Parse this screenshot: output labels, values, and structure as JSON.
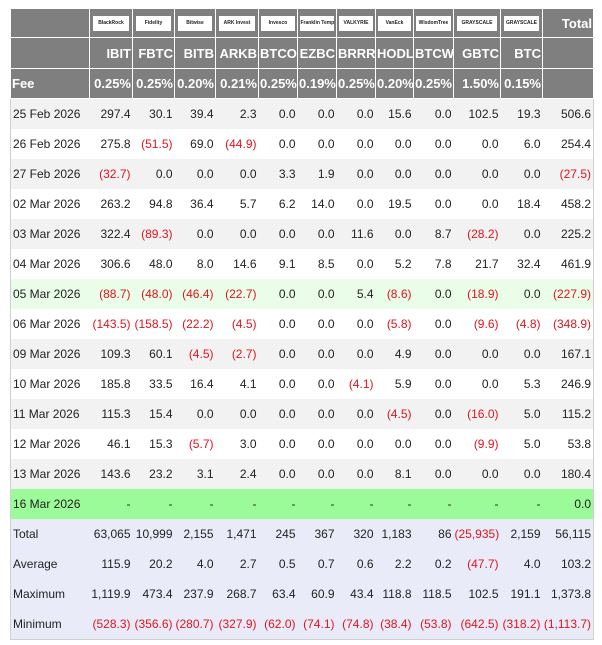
{
  "columns": [
    {
      "issuer": "BlackRock",
      "ticker": "IBIT",
      "fee": "0.25%"
    },
    {
      "issuer": "Fidelity",
      "ticker": "FBTC",
      "fee": "0.25%"
    },
    {
      "issuer": "Bitwise",
      "ticker": "BITB",
      "fee": "0.20%"
    },
    {
      "issuer": "ARK Invest",
      "ticker": "ARKB",
      "fee": "0.21%"
    },
    {
      "issuer": "Invesco",
      "ticker": "BTCO",
      "fee": "0.25%"
    },
    {
      "issuer": "Franklin Templeton",
      "ticker": "EZBC",
      "fee": "0.19%"
    },
    {
      "issuer": "VALKYRIE",
      "ticker": "BRRR",
      "fee": "0.25%"
    },
    {
      "issuer": "VanEck",
      "ticker": "HODL",
      "fee": "0.20%"
    },
    {
      "issuer": "WisdomTree",
      "ticker": "BTCW",
      "fee": "0.25%"
    },
    {
      "issuer": "GRAYSCALE",
      "ticker": "GBTC",
      "fee": "1.50%"
    },
    {
      "issuer": "GRAYSCALE",
      "ticker": "BTC",
      "fee": "0.15%"
    }
  ],
  "total_header": "Total",
  "fee_label": "Fee",
  "rows": [
    {
      "date": "25 Feb 2026",
      "values": [
        "297.4",
        "30.1",
        "39.4",
        "2.3",
        "0.0",
        "0.0",
        "0.0",
        "15.6",
        "0.0",
        "102.5",
        "19.3",
        "506.6"
      ]
    },
    {
      "date": "26 Feb 2026",
      "values": [
        "275.8",
        "(51.5)",
        "69.0",
        "(44.9)",
        "0.0",
        "0.0",
        "0.0",
        "0.0",
        "0.0",
        "0.0",
        "6.0",
        "254.4"
      ]
    },
    {
      "date": "27 Feb 2026",
      "values": [
        "(32.7)",
        "0.0",
        "0.0",
        "0.0",
        "3.3",
        "1.9",
        "0.0",
        "0.0",
        "0.0",
        "0.0",
        "0.0",
        "(27.5)"
      ]
    },
    {
      "date": "02 Mar 2026",
      "values": [
        "263.2",
        "94.8",
        "36.4",
        "5.7",
        "6.2",
        "14.0",
        "0.0",
        "19.5",
        "0.0",
        "0.0",
        "18.4",
        "458.2"
      ]
    },
    {
      "date": "03 Mar 2026",
      "values": [
        "322.4",
        "(89.3)",
        "0.0",
        "0.0",
        "0.0",
        "0.0",
        "11.6",
        "0.0",
        "8.7",
        "(28.2)",
        "0.0",
        "225.2"
      ]
    },
    {
      "date": "04 Mar 2026",
      "values": [
        "306.6",
        "48.0",
        "8.0",
        "14.6",
        "9.1",
        "8.5",
        "0.0",
        "5.2",
        "7.8",
        "21.7",
        "32.4",
        "461.9"
      ]
    },
    {
      "date": "05 Mar 2026",
      "highlight": "hl",
      "values": [
        "(88.7)",
        "(48.0)",
        "(46.4)",
        "(22.7)",
        "0.0",
        "0.0",
        "5.4",
        "(8.6)",
        "0.0",
        "(18.9)",
        "0.0",
        "(227.9)"
      ]
    },
    {
      "date": "06 Mar 2026",
      "values": [
        "(143.5)",
        "(158.5)",
        "(22.2)",
        "(4.5)",
        "0.0",
        "0.0",
        "0.0",
        "(5.8)",
        "0.0",
        "(9.6)",
        "(4.8)",
        "(348.9)"
      ]
    },
    {
      "date": "09 Mar 2026",
      "values": [
        "109.3",
        "60.1",
        "(4.5)",
        "(2.7)",
        "0.0",
        "0.0",
        "0.0",
        "4.9",
        "0.0",
        "0.0",
        "0.0",
        "167.1"
      ]
    },
    {
      "date": "10 Mar 2026",
      "values": [
        "185.8",
        "33.5",
        "16.4",
        "4.1",
        "0.0",
        "0.0",
        "(4.1)",
        "5.9",
        "0.0",
        "0.0",
        "5.3",
        "246.9"
      ]
    },
    {
      "date": "11 Mar 2026",
      "values": [
        "115.3",
        "15.4",
        "0.0",
        "0.0",
        "0.0",
        "0.0",
        "0.0",
        "(4.5)",
        "0.0",
        "(16.0)",
        "5.0",
        "115.2"
      ]
    },
    {
      "date": "12 Mar 2026",
      "values": [
        "46.1",
        "15.3",
        "(5.7)",
        "3.0",
        "0.0",
        "0.0",
        "0.0",
        "0.0",
        "0.0",
        "(9.9)",
        "5.0",
        "53.8"
      ]
    },
    {
      "date": "13 Mar 2026",
      "values": [
        "143.6",
        "23.2",
        "3.1",
        "2.4",
        "0.0",
        "0.0",
        "0.0",
        "8.1",
        "0.0",
        "0.0",
        "0.0",
        "180.4"
      ]
    },
    {
      "date": "16 Mar 2026",
      "highlight": "today",
      "values": [
        "-",
        "-",
        "-",
        "-",
        "-",
        "-",
        "-",
        "-",
        "-",
        "-",
        "-",
        "0.0"
      ]
    }
  ],
  "summary": [
    {
      "label": "Total",
      "values": [
        "63,065",
        "10,999",
        "2,155",
        "1,471",
        "245",
        "367",
        "320",
        "1,183",
        "86",
        "(25,935)",
        "2,159",
        "56,115"
      ]
    },
    {
      "label": "Average",
      "values": [
        "115.9",
        "20.2",
        "4.0",
        "2.7",
        "0.5",
        "0.7",
        "0.6",
        "2.2",
        "0.2",
        "(47.7)",
        "4.0",
        "103.2"
      ]
    },
    {
      "label": "Maximum",
      "values": [
        "1,119.9",
        "473.4",
        "237.9",
        "268.7",
        "63.4",
        "60.9",
        "43.4",
        "118.8",
        "118.5",
        "102.5",
        "191.1",
        "1,373.8"
      ]
    },
    {
      "label": "Minimum",
      "values": [
        "(528.3)",
        "(356.6)",
        "(280.7)",
        "(327.9)",
        "(62.0)",
        "(74.1)",
        "(74.8)",
        "(38.4)",
        "(53.8)",
        "(642.5)",
        "(318.2)",
        "(1,113.7)"
      ]
    }
  ]
}
